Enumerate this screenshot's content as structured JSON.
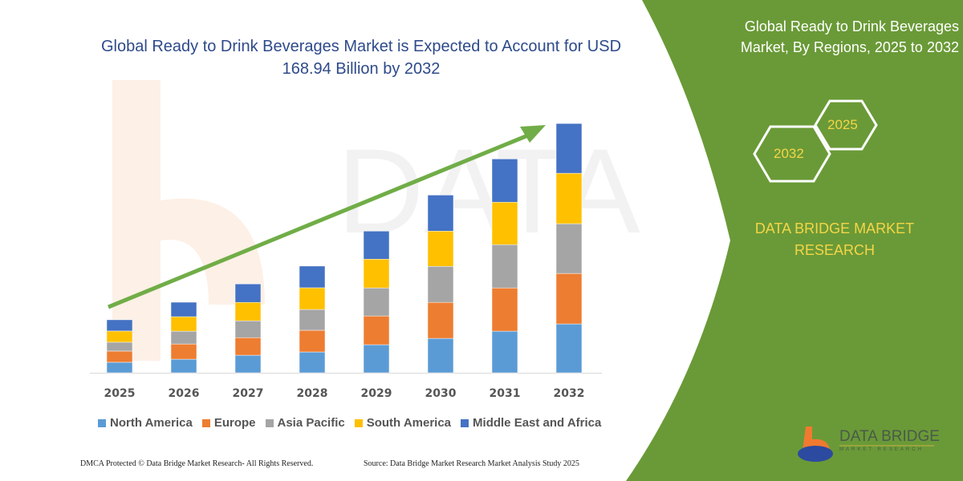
{
  "title": "Global Ready to Drink Beverages Market is Expected to Account for USD 168.94 Billion by 2032",
  "side_panel": {
    "title": "Global Ready to Drink Beverages Market, By Regions, 2025 to 2032",
    "hex_years": [
      "2025",
      "2032"
    ],
    "brand": "DATA BRIDGE MARKET RESEARCH",
    "logo_text": "DATA BRIDGE",
    "logo_subtext": "MARKET RESEARCH",
    "color": "#6a9a37"
  },
  "footer": {
    "left": "DMCA Protected © Data Bridge Market Research- All Rights Reserved.",
    "right": "Source: Data Bridge Market Research Market Analysis Study 2025"
  },
  "chart_data": {
    "type": "bar",
    "stacked": true,
    "title": "Global Ready to Drink Beverages Market is Expected to Account for USD 168.94 Billion by 2032",
    "categories": [
      "2025",
      "2026",
      "2027",
      "2028",
      "2029",
      "2030",
      "2031",
      "2032"
    ],
    "series": [
      {
        "name": "North America",
        "color": "#5b9bd5",
        "values": [
          7.1,
          9.2,
          11.9,
          14.1,
          19.0,
          23.3,
          28.2,
          33.1
        ]
      },
      {
        "name": "Europe",
        "color": "#ed7d31",
        "values": [
          7.6,
          10.3,
          11.9,
          14.7,
          19.5,
          24.4,
          29.3,
          34.2
        ]
      },
      {
        "name": "Asia Pacific",
        "color": "#a5a5a5",
        "values": [
          6.0,
          8.7,
          11.4,
          14.1,
          19.0,
          24.4,
          29.3,
          33.7
        ]
      },
      {
        "name": "South America",
        "color": "#ffc000",
        "values": [
          7.6,
          9.8,
          12.5,
          14.7,
          19.5,
          23.9,
          28.8,
          34.2
        ]
      },
      {
        "name": "Middle East and Africa",
        "color": "#4472c4",
        "values": [
          7.6,
          9.8,
          12.5,
          14.7,
          19.0,
          24.4,
          29.3,
          33.7
        ]
      }
    ],
    "ylim": [
      0,
      168.94
    ],
    "y_axis_shown": false,
    "grid": false,
    "legend": "bottom",
    "trend_arrow_color": "#70ad47"
  }
}
